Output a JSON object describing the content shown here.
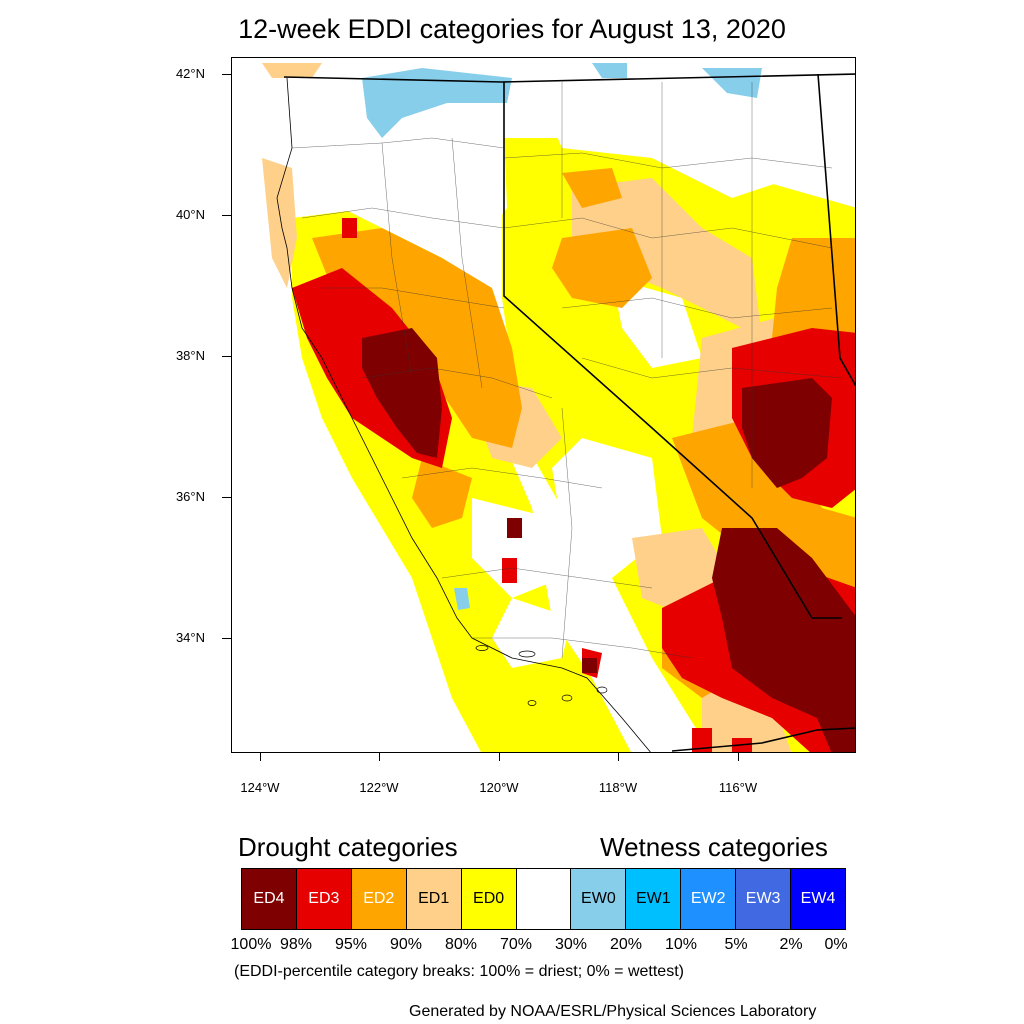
{
  "title": "12-week EDDI categories for August 13, 2020",
  "map": {
    "lat_labels": [
      "42°N",
      "40°N",
      "38°N",
      "36°N",
      "34°N"
    ],
    "lon_labels": [
      "124°W",
      "122°W",
      "120°W",
      "118°W",
      "116°W"
    ]
  },
  "legend": {
    "drought_heading": "Drought categories",
    "wetness_heading": "Wetness categories",
    "categories": [
      {
        "label": "ED4",
        "color": "#7f0000",
        "text_color": "#ffffff"
      },
      {
        "label": "ED3",
        "color": "#e60000",
        "text_color": "#ffffff"
      },
      {
        "label": "ED2",
        "color": "#ffa500",
        "text_color": "#ffffff"
      },
      {
        "label": "ED1",
        "color": "#ffd08a",
        "text_color": "#000000"
      },
      {
        "label": "ED0",
        "color": "#ffff00",
        "text_color": "#000000"
      },
      {
        "label": "",
        "color": "#ffffff",
        "text_color": "#000000"
      },
      {
        "label": "EW0",
        "color": "#87ceeb",
        "text_color": "#000000"
      },
      {
        "label": "EW1",
        "color": "#00bfff",
        "text_color": "#000000"
      },
      {
        "label": "EW2",
        "color": "#1e90ff",
        "text_color": "#ffffff"
      },
      {
        "label": "EW3",
        "color": "#4169e1",
        "text_color": "#ffffff"
      },
      {
        "label": "EW4",
        "color": "#0000ff",
        "text_color": "#ffffff"
      }
    ],
    "percentiles": [
      "100%",
      "98%",
      "95%",
      "90%",
      "80%",
      "70%",
      "30%",
      "20%",
      "10%",
      "5%",
      "2%",
      "0%"
    ],
    "note": "(EDDI-percentile category breaks: 100% = driest; 0% = wettest)"
  },
  "credit": "Generated by NOAA/ESRL/Physical Sciences Laboratory"
}
